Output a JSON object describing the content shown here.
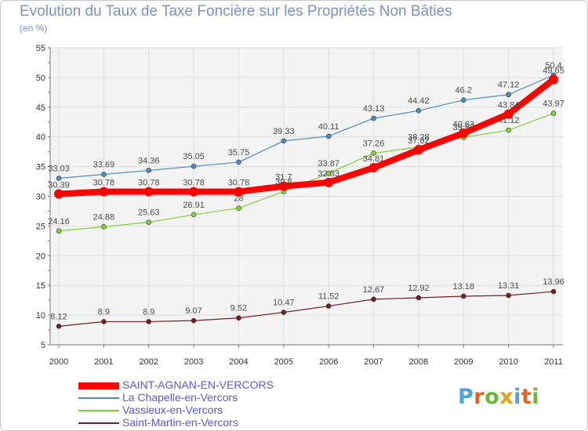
{
  "title": "Evolution du Taux de Taxe Foncière sur les Propriétés Non Bâties",
  "subtitle": "(en %)",
  "logo": {
    "text": "Proxiti",
    "colors": [
      "#4fa3d8",
      "#e1651f",
      "#6db33f",
      "#e6a11a",
      "#4fa3d8",
      "#e1651f",
      "#6db33f"
    ]
  },
  "chart_data": {
    "type": "line",
    "x": [
      "2000",
      "2001",
      "2002",
      "2003",
      "2004",
      "2005",
      "2006",
      "2007",
      "2008",
      "2009",
      "2010",
      "2011"
    ],
    "ylim": [
      5,
      55
    ],
    "yticks": [
      "5",
      "10",
      "15",
      "20",
      "25",
      "30",
      "35",
      "40",
      "45",
      "50",
      "55"
    ],
    "grid": true,
    "legend_position": "bottom-left",
    "series": [
      {
        "name": "SAINT-AGNAN-EN-VERCORS",
        "color": "#ff0000",
        "values": [
          30.39,
          30.78,
          30.78,
          30.78,
          30.78,
          31.7,
          32.33,
          34.81,
          37.82,
          40.63,
          43.84,
          49.65
        ],
        "labels": [
          "30.39",
          "30.78",
          "30.78",
          "30.78",
          "30.78",
          "31.7",
          "32.33",
          "34.81",
          "37.82",
          "40.63",
          "43.84",
          "49.65"
        ]
      },
      {
        "name": "La Chapelle-en-Vercors",
        "color": "#4a8cc4",
        "values": [
          33.03,
          33.69,
          34.36,
          35.05,
          35.75,
          39.33,
          40.11,
          43.13,
          44.42,
          46.2,
          47.12,
          50.4
        ],
        "labels": [
          "33.03",
          "33.69",
          "34.36",
          "35.05",
          "35.75",
          "39.33",
          "40.11",
          "43.13",
          "44.42",
          "46.2",
          "47.12",
          "50.4"
        ]
      },
      {
        "name": "Vassieux-en-Vercors",
        "color": "#7cd13c",
        "values": [
          24.16,
          24.88,
          25.63,
          26.91,
          28,
          30.8,
          33.87,
          37.26,
          38.28,
          39.93,
          41.12,
          43.97
        ],
        "labels": [
          "24.16",
          "24.88",
          "25.63",
          "26.91",
          "28",
          "30.8",
          "33.87",
          "37.26",
          "38.28",
          "39.93",
          "41.12",
          "43.97"
        ]
      },
      {
        "name": "Saint-Martin-en-Vercors",
        "color": "#6e1f1f",
        "values": [
          8.12,
          8.9,
          8.9,
          9.07,
          9.52,
          10.47,
          11.52,
          12.67,
          12.92,
          13.18,
          13.31,
          13.96
        ],
        "labels": [
          "8.12",
          "8.9",
          "8.9",
          "9.07",
          "9.52",
          "10.47",
          "11.52",
          "12.67",
          "12.92",
          "13.18",
          "13.31",
          "13.96"
        ]
      }
    ]
  }
}
